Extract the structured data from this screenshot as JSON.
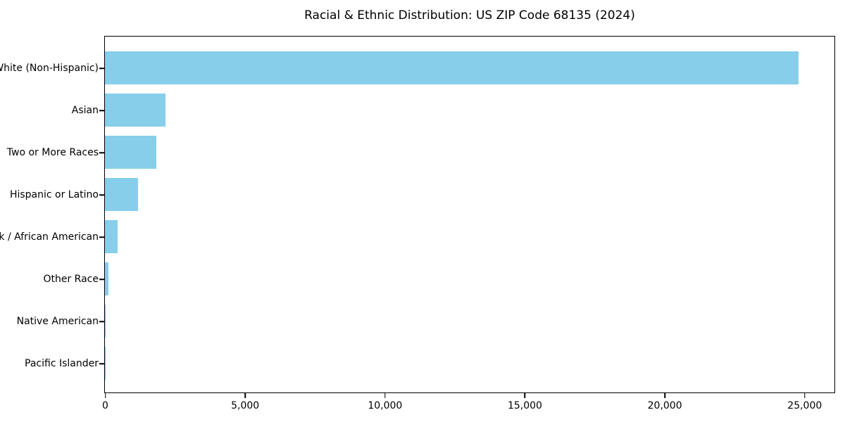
{
  "chart_data": {
    "type": "bar",
    "orientation": "horizontal",
    "title": "Racial & Ethnic Distribution: US ZIP Code 68135 (2024)",
    "categories": [
      "White (Non-Hispanic)",
      "Asian",
      "Two or More Races",
      "Hispanic or Latino",
      "Black / African American",
      "Other Race",
      "Native American",
      "Pacific Islander"
    ],
    "values": [
      24800,
      2160,
      1840,
      1180,
      450,
      130,
      25,
      10
    ],
    "xlabel": "",
    "ylabel": "",
    "xlim": [
      0,
      26050
    ],
    "xticks": {
      "values": [
        0,
        5000,
        10000,
        15000,
        20000,
        25000
      ],
      "labels": [
        "0",
        "5,000",
        "10,000",
        "15,000",
        "20,000",
        "25,000"
      ]
    },
    "bar_color": "#87CEEB",
    "text_color": "#000000",
    "frame_color": "#000000",
    "background_color": "#ffffff",
    "grid": false,
    "legend": null,
    "value_order": "descending top to bottom"
  }
}
